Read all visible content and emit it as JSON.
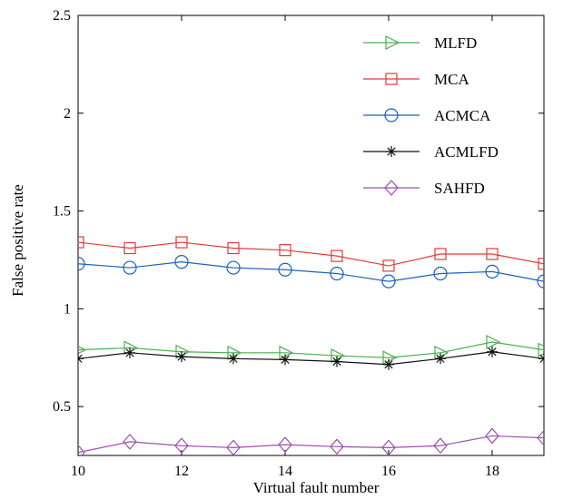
{
  "chart_data": {
    "type": "line",
    "xlabel": "Virtual fault number",
    "ylabel": "False positive rate",
    "xlim": [
      10,
      19
    ],
    "ylim": [
      0.25,
      2.5
    ],
    "xticks": [
      10,
      12,
      14,
      16,
      18
    ],
    "yticks": [
      0.5,
      1,
      1.5,
      2,
      2.5
    ],
    "x": [
      10,
      11,
      12,
      13,
      14,
      15,
      16,
      17,
      18,
      19
    ],
    "legend_position": "top-right",
    "grid": false,
    "series": [
      {
        "name": "MLFD",
        "color": "#4caf50",
        "marker": "triangle-right",
        "values": [
          0.79,
          0.8,
          0.78,
          0.775,
          0.775,
          0.76,
          0.75,
          0.775,
          0.83,
          0.79
        ]
      },
      {
        "name": "MCA",
        "color": "#e53935",
        "marker": "square",
        "values": [
          1.34,
          1.31,
          1.34,
          1.31,
          1.3,
          1.27,
          1.22,
          1.28,
          1.28,
          1.23
        ]
      },
      {
        "name": "ACMCA",
        "color": "#1f5fbf",
        "marker": "circle",
        "values": [
          1.23,
          1.21,
          1.24,
          1.21,
          1.2,
          1.18,
          1.14,
          1.18,
          1.19,
          1.14
        ]
      },
      {
        "name": "ACMLFD",
        "color": "#111111",
        "marker": "asterisk",
        "values": [
          0.745,
          0.775,
          0.755,
          0.745,
          0.74,
          0.73,
          0.715,
          0.745,
          0.78,
          0.745
        ]
      },
      {
        "name": "SAHFD",
        "color": "#9c4fb0",
        "marker": "diamond",
        "values": [
          0.265,
          0.32,
          0.3,
          0.29,
          0.305,
          0.295,
          0.29,
          0.3,
          0.35,
          0.34
        ]
      }
    ]
  }
}
